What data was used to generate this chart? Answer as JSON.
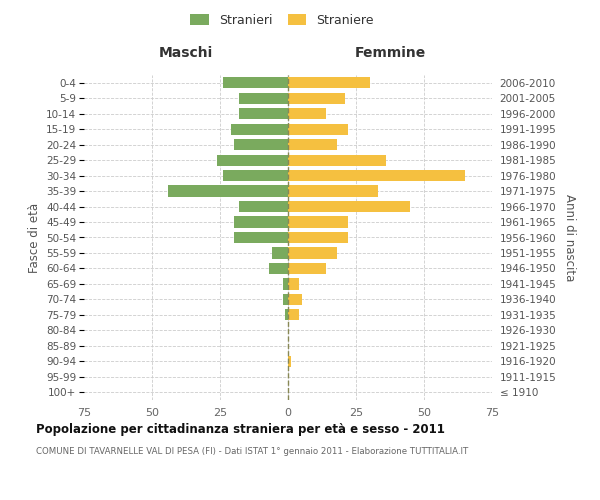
{
  "age_groups": [
    "100+",
    "95-99",
    "90-94",
    "85-89",
    "80-84",
    "75-79",
    "70-74",
    "65-69",
    "60-64",
    "55-59",
    "50-54",
    "45-49",
    "40-44",
    "35-39",
    "30-34",
    "25-29",
    "20-24",
    "15-19",
    "10-14",
    "5-9",
    "0-4"
  ],
  "birth_years": [
    "≤ 1910",
    "1911-1915",
    "1916-1920",
    "1921-1925",
    "1926-1930",
    "1931-1935",
    "1936-1940",
    "1941-1945",
    "1946-1950",
    "1951-1955",
    "1956-1960",
    "1961-1965",
    "1966-1970",
    "1971-1975",
    "1976-1980",
    "1981-1985",
    "1986-1990",
    "1991-1995",
    "1996-2000",
    "2001-2005",
    "2006-2010"
  ],
  "maschi": [
    0,
    0,
    0,
    0,
    0,
    1,
    2,
    2,
    7,
    6,
    20,
    20,
    18,
    44,
    24,
    26,
    20,
    21,
    18,
    18,
    24
  ],
  "femmine": [
    0,
    0,
    1,
    0,
    0,
    4,
    5,
    4,
    14,
    18,
    22,
    22,
    45,
    33,
    65,
    36,
    18,
    22,
    14,
    21,
    30
  ],
  "male_color": "#7aaa5e",
  "female_color": "#f5c040",
  "center_line_color": "#888855",
  "grid_color": "#cccccc",
  "xlim": 75,
  "title": "Popolazione per cittadinanza straniera per età e sesso - 2011",
  "subtitle": "COMUNE DI TAVARNELLE VAL DI PESA (FI) - Dati ISTAT 1° gennaio 2011 - Elaborazione TUTTITALIA.IT",
  "ylabel_left": "Fasce di età",
  "ylabel_right": "Anni di nascita",
  "xlabel_maschi": "Maschi",
  "xlabel_femmine": "Femmine",
  "legend_maschi": "Stranieri",
  "legend_femmine": "Straniere",
  "background_color": "#ffffff",
  "fig_width": 6.0,
  "fig_height": 5.0,
  "dpi": 100
}
